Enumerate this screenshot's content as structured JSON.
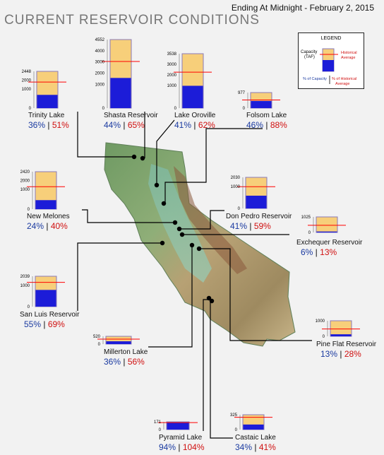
{
  "header": {
    "date_line": "Ending At Midnight - February 2, 2015",
    "title": "CURRENT RESERVOIR CONDITIONS"
  },
  "legend": {
    "title": "LEGEND",
    "capacity_label_line1": "Capacity",
    "capacity_label_line2": "(TAF)",
    "historical_label_line1": "Historical",
    "historical_label_line2": "Average",
    "pct_capacity_label": "% of Capacity",
    "pct_hist_label_line1": "% of Historical",
    "pct_hist_label_line2": "Average"
  },
  "colors": {
    "capacity_fill": "#f7cf7a",
    "storage_top": "#1c1cd8",
    "storage_bottom": "#00007a",
    "historical_line": "#ff0000",
    "pct_capacity_text": "#1a3aa0",
    "pct_hist_text": "#d01010",
    "bar_border": "#8a7ab8"
  },
  "reservoirs": [
    {
      "name": "Trinity Lake",
      "capacity": "2448",
      "ticks": [
        "2000",
        "1000",
        "0"
      ],
      "pct_capacity": "36%",
      "pct_historical": "51%",
      "storage_fraction": 0.36,
      "historical_fraction": 0.71
    },
    {
      "name": "Shasta Reservoir",
      "capacity": "4552",
      "ticks": [
        "4000",
        "3000",
        "2000",
        "1000",
        "0"
      ],
      "pct_capacity": "44%",
      "pct_historical": "65%",
      "storage_fraction": 0.44,
      "historical_fraction": 0.68
    },
    {
      "name": "Lake Oroville",
      "capacity": "3538",
      "ticks": [
        "3000",
        "2000",
        "1000",
        "0"
      ],
      "pct_capacity": "41%",
      "pct_historical": "62%",
      "storage_fraction": 0.41,
      "historical_fraction": 0.66
    },
    {
      "name": "Folsom Lake",
      "capacity": "977",
      "ticks": [
        "0"
      ],
      "pct_capacity": "46%",
      "pct_historical": "88%",
      "storage_fraction": 0.46,
      "historical_fraction": 0.52
    },
    {
      "name": "New Melones",
      "capacity": "2420",
      "ticks": [
        "2000",
        "1000",
        "0"
      ],
      "pct_capacity": "24%",
      "pct_historical": "40%",
      "storage_fraction": 0.24,
      "historical_fraction": 0.6
    },
    {
      "name": "Don Pedro Reservoir",
      "capacity": "2030",
      "ticks": [
        "1000",
        "0"
      ],
      "pct_capacity": "41%",
      "pct_historical": "59%",
      "storage_fraction": 0.41,
      "historical_fraction": 0.7
    },
    {
      "name": "Exchequer Reservoir",
      "capacity": "1025",
      "ticks": [
        "0"
      ],
      "pct_capacity": "6%",
      "pct_historical": "13%",
      "storage_fraction": 0.06,
      "historical_fraction": 0.46
    },
    {
      "name": "San Luis Reservoir",
      "capacity": "2039",
      "ticks": [
        "1000",
        "0"
      ],
      "pct_capacity": "55%",
      "pct_historical": "69%",
      "storage_fraction": 0.55,
      "historical_fraction": 0.8
    },
    {
      "name": "Millerton Lake",
      "capacity": "520",
      "ticks": [
        "0"
      ],
      "pct_capacity": "36%",
      "pct_historical": "56%",
      "storage_fraction": 0.36,
      "historical_fraction": 0.64
    },
    {
      "name": "Pine Flat Reservoir",
      "capacity": "1000",
      "ticks": [
        "0"
      ],
      "pct_capacity": "13%",
      "pct_historical": "28%",
      "storage_fraction": 0.13,
      "historical_fraction": 0.47
    },
    {
      "name": "Pyramid Lake",
      "capacity": "171",
      "ticks": [
        "0"
      ],
      "pct_capacity": "94%",
      "pct_historical": "104%",
      "storage_fraction": 0.94,
      "historical_fraction": 0.9
    },
    {
      "name": "Castaic Lake",
      "capacity": "325",
      "ticks": [
        "0"
      ],
      "pct_capacity": "34%",
      "pct_historical": "41%",
      "storage_fraction": 0.34,
      "historical_fraction": 0.83
    }
  ]
}
